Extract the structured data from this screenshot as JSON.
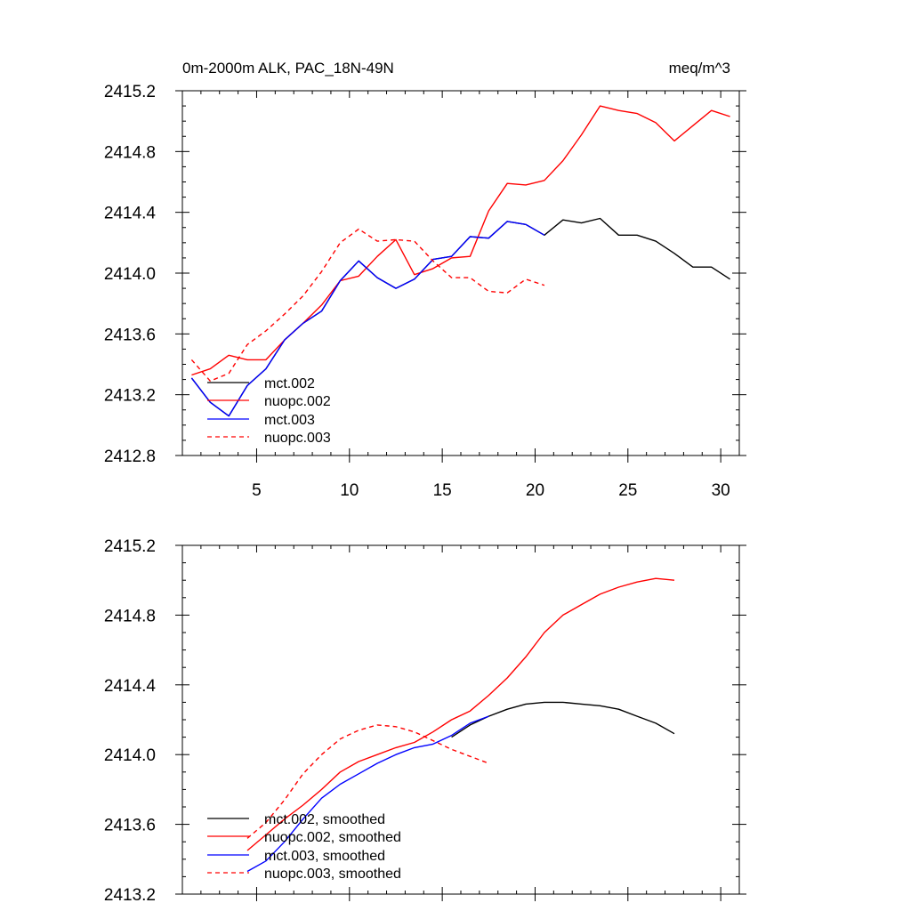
{
  "colors": {
    "mct_002": "#000000",
    "nuopc_002": "#ff0000",
    "mct_003": "#0000ff",
    "nuopc_003": "#ff0000"
  },
  "chart_data": [
    {
      "type": "line",
      "title": "0m-2000m ALK, PAC_18N-49N",
      "units": "meq/m^3",
      "xlim": [
        1,
        31
      ],
      "ylim": [
        2412.8,
        2415.2
      ],
      "xticks": [
        5,
        10,
        15,
        20,
        25,
        30
      ],
      "yticks": [
        2412.8,
        2413.2,
        2413.6,
        2414.0,
        2414.4,
        2414.8,
        2415.2
      ],
      "ytick_labels": [
        "2412.8",
        "2413.2",
        "2413.6",
        "2414.0",
        "2414.4",
        "2414.8",
        "2415.2"
      ],
      "series": [
        {
          "name": "mct.002",
          "color": "#000000",
          "dash": false,
          "x": [
            1.5,
            2.5,
            3.5,
            4.5,
            5.5,
            6.5,
            7.5,
            8.5,
            9.5,
            10.5,
            11.5,
            12.5,
            13.5,
            14.5,
            15.5,
            16.5,
            17.5,
            18.5,
            19.5,
            20.5,
            21.5,
            22.5,
            23.5,
            24.5,
            25.5,
            26.5,
            27.5,
            28.5,
            29.5,
            30.5
          ],
          "y": [
            2413.31,
            2413.15,
            2413.06,
            2413.26,
            2413.37,
            2413.56,
            2413.67,
            2413.75,
            2413.95,
            2414.08,
            2413.97,
            2413.9,
            2413.96,
            2414.09,
            2414.11,
            2414.24,
            2414.23,
            2414.34,
            2414.32,
            2414.25,
            2414.35,
            2414.33,
            2414.36,
            2414.25,
            2414.25,
            2414.21,
            2414.13,
            2414.04,
            2414.04,
            2413.96
          ]
        },
        {
          "name": "nuopc.002",
          "color": "#ff0000",
          "dash": false,
          "x": [
            1.5,
            2.5,
            3.5,
            4.5,
            5.5,
            6.5,
            7.5,
            8.5,
            9.5,
            10.5,
            11.5,
            12.5,
            13.5,
            14.5,
            15.5,
            16.5,
            17.5,
            18.5,
            19.5,
            20.5,
            21.5,
            22.5,
            23.5,
            24.5,
            25.5,
            26.5,
            27.5,
            28.5,
            29.5,
            30.5
          ],
          "y": [
            2413.33,
            2413.37,
            2413.46,
            2413.43,
            2413.43,
            2413.56,
            2413.67,
            2413.79,
            2413.95,
            2413.98,
            2414.11,
            2414.22,
            2413.99,
            2414.03,
            2414.1,
            2414.11,
            2414.41,
            2414.59,
            2414.58,
            2414.61,
            2414.74,
            2414.91,
            2415.1,
            2415.07,
            2415.05,
            2414.99,
            2414.87,
            2414.97,
            2415.07,
            2415.03
          ]
        },
        {
          "name": "mct.003",
          "color": "#0000ff",
          "dash": false,
          "x": [
            1.5,
            2.5,
            3.5,
            4.5,
            5.5,
            6.5,
            7.5,
            8.5,
            9.5,
            10.5,
            11.5,
            12.5,
            13.5,
            14.5,
            15.5,
            16.5,
            17.5,
            18.5,
            19.5,
            20.5
          ],
          "y": [
            2413.31,
            2413.15,
            2413.06,
            2413.26,
            2413.37,
            2413.56,
            2413.67,
            2413.75,
            2413.95,
            2414.08,
            2413.97,
            2413.9,
            2413.96,
            2414.09,
            2414.11,
            2414.24,
            2414.23,
            2414.34,
            2414.32,
            2414.25
          ]
        },
        {
          "name": "nuopc.003",
          "color": "#ff0000",
          "dash": true,
          "x": [
            1.5,
            2.5,
            3.5,
            4.5,
            5.5,
            6.5,
            7.5,
            8.5,
            9.5,
            10.5,
            11.5,
            12.5,
            13.5,
            14.5,
            15.5,
            16.5,
            17.5,
            18.5,
            19.5,
            20.5
          ],
          "y": [
            2413.43,
            2413.29,
            2413.34,
            2413.53,
            2413.62,
            2413.73,
            2413.85,
            2414.01,
            2414.2,
            2414.29,
            2414.21,
            2414.22,
            2414.21,
            2414.08,
            2413.97,
            2413.97,
            2413.88,
            2413.87,
            2413.96,
            2413.92
          ]
        }
      ]
    },
    {
      "type": "line",
      "xlim": [
        1,
        31
      ],
      "ylim": [
        2413.2,
        2415.2
      ],
      "xticks": [
        5,
        10,
        15,
        20,
        25,
        30
      ],
      "yticks": [
        2413.2,
        2413.6,
        2414.0,
        2414.4,
        2414.8,
        2415.2
      ],
      "ytick_labels": [
        "2413.2",
        "2413.6",
        "2414.0",
        "2414.4",
        "2414.8",
        "2415.2"
      ],
      "series": [
        {
          "name": "mct.002, smoothed",
          "color": "#000000",
          "dash": false,
          "x": [
            15.5,
            16.5,
            17.5,
            18.5,
            19.5,
            20.5,
            21.5,
            22.5,
            23.5,
            24.5,
            25.5,
            26.5,
            27.5
          ],
          "y": [
            2414.1,
            2414.17,
            2414.22,
            2414.26,
            2414.29,
            2414.3,
            2414.3,
            2414.29,
            2414.28,
            2414.26,
            2414.22,
            2414.18,
            2414.12
          ]
        },
        {
          "name": "nuopc.002, smoothed",
          "color": "#ff0000",
          "dash": false,
          "x": [
            4.5,
            5.5,
            6.5,
            7.5,
            8.5,
            9.5,
            10.5,
            11.5,
            12.5,
            13.5,
            14.5,
            15.5,
            16.5,
            17.5,
            18.5,
            19.5,
            20.5,
            21.5,
            22.5,
            23.5,
            24.5,
            25.5,
            26.5,
            27.5
          ],
          "y": [
            2413.45,
            2413.54,
            2413.63,
            2413.71,
            2413.8,
            2413.9,
            2413.96,
            2414.0,
            2414.04,
            2414.07,
            2414.13,
            2414.2,
            2414.25,
            2414.34,
            2414.44,
            2414.56,
            2414.7,
            2414.8,
            2414.86,
            2414.92,
            2414.96,
            2414.99,
            2415.01,
            2415.0
          ]
        },
        {
          "name": "mct.003, smoothed",
          "color": "#0000ff",
          "dash": false,
          "x": [
            4.5,
            5.5,
            6.5,
            7.5,
            8.5,
            9.5,
            10.5,
            11.5,
            12.5,
            13.5,
            14.5,
            15.5,
            16.5,
            17.5
          ],
          "y": [
            2413.33,
            2413.39,
            2413.5,
            2413.63,
            2413.75,
            2413.83,
            2413.89,
            2413.95,
            2414.0,
            2414.04,
            2414.06,
            2414.11,
            2414.18,
            2414.22
          ]
        },
        {
          "name": "nuopc.003, smoothed",
          "color": "#ff0000",
          "dash": true,
          "x": [
            4.5,
            5.5,
            6.5,
            7.5,
            8.5,
            9.5,
            10.5,
            11.5,
            12.5,
            13.5,
            14.5,
            15.5,
            16.5,
            17.5
          ],
          "y": [
            2413.52,
            2413.61,
            2413.74,
            2413.89,
            2414.0,
            2414.09,
            2414.14,
            2414.17,
            2414.16,
            2414.13,
            2414.08,
            2414.03,
            2413.99,
            2413.95
          ]
        }
      ]
    }
  ]
}
